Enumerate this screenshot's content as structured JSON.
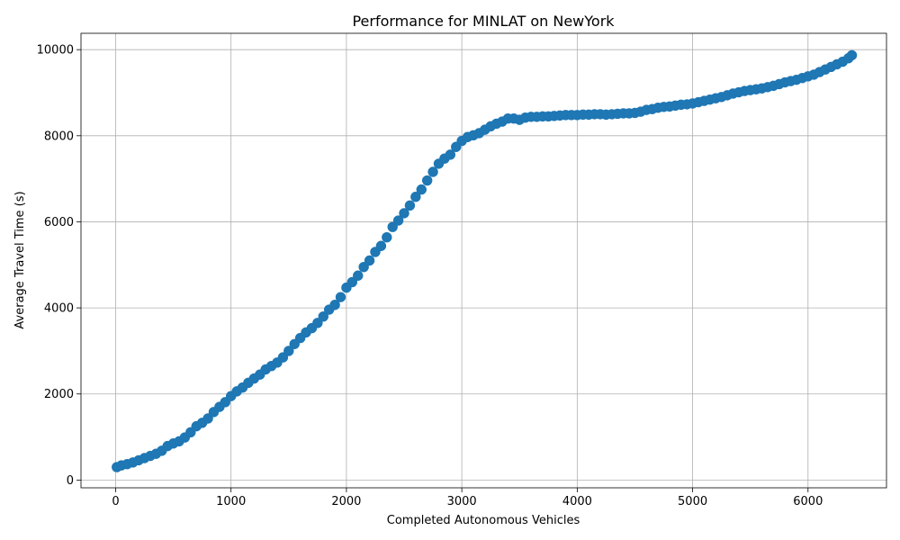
{
  "chart_data": {
    "type": "scatter",
    "title": "Performance for MINLAT on NewYork",
    "xlabel": "Completed Autonomous Vehicles",
    "ylabel": "Average Travel Time (s)",
    "xlim": [
      -300,
      6680
    ],
    "ylim": [
      -180,
      10380
    ],
    "xticks": [
      0,
      1000,
      2000,
      3000,
      4000,
      5000,
      6000
    ],
    "yticks": [
      0,
      2000,
      4000,
      6000,
      8000,
      10000
    ],
    "grid": true,
    "legend": "none",
    "series": [
      {
        "color": "#1f77b4",
        "x": [
          10,
          50,
          100,
          150,
          200,
          250,
          300,
          350,
          400,
          450,
          500,
          550,
          600,
          650,
          700,
          750,
          800,
          850,
          900,
          950,
          1000,
          1050,
          1100,
          1150,
          1200,
          1250,
          1300,
          1350,
          1400,
          1450,
          1500,
          1550,
          1600,
          1650,
          1700,
          1750,
          1800,
          1850,
          1900,
          1950,
          2000,
          2050,
          2100,
          2150,
          2200,
          2250,
          2300,
          2350,
          2400,
          2450,
          2500,
          2550,
          2600,
          2650,
          2700,
          2750,
          2800,
          2850,
          2900,
          2950,
          3000,
          3050,
          3100,
          3150,
          3200,
          3250,
          3300,
          3350,
          3400,
          3450,
          3500,
          3550,
          3600,
          3650,
          3700,
          3750,
          3800,
          3850,
          3900,
          3950,
          4000,
          4050,
          4100,
          4150,
          4200,
          4250,
          4300,
          4350,
          4400,
          4450,
          4500,
          4550,
          4600,
          4650,
          4700,
          4750,
          4800,
          4850,
          4900,
          4950,
          5000,
          5050,
          5100,
          5150,
          5200,
          5250,
          5300,
          5350,
          5400,
          5450,
          5500,
          5550,
          5600,
          5650,
          5700,
          5750,
          5800,
          5850,
          5900,
          5950,
          6000,
          6050,
          6100,
          6150,
          6200,
          6250,
          6300,
          6350,
          6380
        ],
        "y": [
          300,
          340,
          370,
          410,
          460,
          510,
          560,
          610,
          680,
          790,
          850,
          900,
          990,
          1110,
          1250,
          1330,
          1430,
          1580,
          1700,
          1810,
          1950,
          2060,
          2150,
          2260,
          2360,
          2450,
          2570,
          2650,
          2730,
          2850,
          3000,
          3160,
          3300,
          3430,
          3530,
          3650,
          3800,
          3960,
          4070,
          4250,
          4470,
          4600,
          4750,
          4950,
          5100,
          5300,
          5440,
          5640,
          5880,
          6030,
          6200,
          6380,
          6580,
          6750,
          6960,
          7160,
          7350,
          7470,
          7560,
          7740,
          7880,
          7970,
          8010,
          8060,
          8140,
          8220,
          8280,
          8330,
          8400,
          8400,
          8370,
          8420,
          8440,
          8440,
          8450,
          8450,
          8460,
          8470,
          8480,
          8480,
          8480,
          8490,
          8490,
          8500,
          8500,
          8490,
          8500,
          8510,
          8520,
          8520,
          8530,
          8560,
          8600,
          8620,
          8650,
          8670,
          8680,
          8700,
          8720,
          8730,
          8750,
          8780,
          8810,
          8840,
          8870,
          8900,
          8940,
          8980,
          9010,
          9040,
          9060,
          9080,
          9100,
          9130,
          9160,
          9200,
          9240,
          9270,
          9300,
          9340,
          9380,
          9420,
          9480,
          9540,
          9600,
          9660,
          9720,
          9800,
          9870
        ]
      }
    ]
  }
}
